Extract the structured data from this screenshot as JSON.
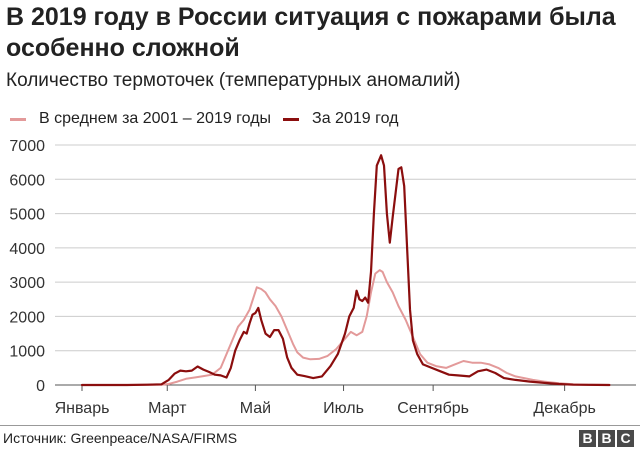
{
  "title": "В 2019 году в России ситуация с пожарами была особенно сложной",
  "subtitle": "Количество термоточек (температурных аномалий)",
  "legend": [
    {
      "label": "В среднем за 2001 – 2019 годы",
      "color": "#e39a9a"
    },
    {
      "label": "За 2019 год",
      "color": "#8b0e0e"
    }
  ],
  "source": "Источник: Greenpeace/NASA/FIRMS",
  "logo": [
    "B",
    "B",
    "C"
  ],
  "chart_data": {
    "type": "line",
    "title": "В 2019 году в России ситуация с пожарами была особенно сложной",
    "subtitle": "Количество термоточек (температурных аномалий)",
    "xlabel": "",
    "ylabel": "",
    "ylim": [
      0,
      7000
    ],
    "yticks": [
      0,
      1000,
      2000,
      3000,
      4000,
      5000,
      6000,
      7000
    ],
    "xticks": [
      {
        "label": "Январь",
        "day": 0
      },
      {
        "label": "Март",
        "day": 59
      },
      {
        "label": "Май",
        "day": 120
      },
      {
        "label": "Июль",
        "day": 181
      },
      {
        "label": "Сентябрь",
        "day": 243
      },
      {
        "label": "Декабрь",
        "day": 334
      }
    ],
    "grid": true,
    "legend_position": "top",
    "x_unit": "day of year",
    "series": [
      {
        "name": "В среднем за 2001 – 2019 годы",
        "color": "#e39a9a",
        "points": [
          [
            0,
            0
          ],
          [
            30,
            0
          ],
          [
            55,
            10
          ],
          [
            60,
            30
          ],
          [
            66,
            100
          ],
          [
            72,
            180
          ],
          [
            78,
            220
          ],
          [
            84,
            260
          ],
          [
            90,
            300
          ],
          [
            96,
            500
          ],
          [
            100,
            900
          ],
          [
            104,
            1300
          ],
          [
            108,
            1700
          ],
          [
            112,
            1900
          ],
          [
            116,
            2200
          ],
          [
            119,
            2600
          ],
          [
            121,
            2850
          ],
          [
            124,
            2800
          ],
          [
            127,
            2700
          ],
          [
            130,
            2500
          ],
          [
            134,
            2300
          ],
          [
            138,
            2000
          ],
          [
            142,
            1600
          ],
          [
            146,
            1200
          ],
          [
            149,
            950
          ],
          [
            153,
            800
          ],
          [
            158,
            750
          ],
          [
            164,
            760
          ],
          [
            170,
            850
          ],
          [
            176,
            1050
          ],
          [
            182,
            1350
          ],
          [
            186,
            1550
          ],
          [
            190,
            1450
          ],
          [
            194,
            1550
          ],
          [
            197,
            2000
          ],
          [
            200,
            2700
          ],
          [
            203,
            3250
          ],
          [
            206,
            3350
          ],
          [
            208,
            3300
          ],
          [
            211,
            3000
          ],
          [
            215,
            2700
          ],
          [
            219,
            2300
          ],
          [
            224,
            1900
          ],
          [
            229,
            1400
          ],
          [
            234,
            900
          ],
          [
            239,
            650
          ],
          [
            245,
            550
          ],
          [
            252,
            500
          ],
          [
            258,
            600
          ],
          [
            264,
            700
          ],
          [
            270,
            650
          ],
          [
            276,
            650
          ],
          [
            282,
            600
          ],
          [
            288,
            500
          ],
          [
            294,
            350
          ],
          [
            300,
            250
          ],
          [
            306,
            200
          ],
          [
            312,
            150
          ],
          [
            320,
            100
          ],
          [
            330,
            50
          ],
          [
            340,
            20
          ],
          [
            350,
            5
          ],
          [
            365,
            0
          ]
        ]
      },
      {
        "name": "За 2019 год",
        "color": "#8b0e0e",
        "points": [
          [
            0,
            0
          ],
          [
            30,
            0
          ],
          [
            45,
            10
          ],
          [
            55,
            20
          ],
          [
            60,
            150
          ],
          [
            64,
            330
          ],
          [
            68,
            420
          ],
          [
            72,
            400
          ],
          [
            76,
            420
          ],
          [
            80,
            540
          ],
          [
            84,
            450
          ],
          [
            88,
            380
          ],
          [
            92,
            300
          ],
          [
            96,
            280
          ],
          [
            100,
            220
          ],
          [
            103,
            500
          ],
          [
            106,
            1000
          ],
          [
            109,
            1300
          ],
          [
            112,
            1550
          ],
          [
            114,
            1500
          ],
          [
            116,
            1800
          ],
          [
            118,
            2050
          ],
          [
            120,
            2100
          ],
          [
            122,
            2250
          ],
          [
            124,
            1900
          ],
          [
            127,
            1500
          ],
          [
            130,
            1400
          ],
          [
            133,
            1600
          ],
          [
            136,
            1600
          ],
          [
            139,
            1350
          ],
          [
            142,
            800
          ],
          [
            145,
            500
          ],
          [
            149,
            300
          ],
          [
            154,
            260
          ],
          [
            160,
            200
          ],
          [
            166,
            250
          ],
          [
            172,
            550
          ],
          [
            177,
            900
          ],
          [
            182,
            1500
          ],
          [
            185,
            2000
          ],
          [
            188,
            2250
          ],
          [
            190,
            2750
          ],
          [
            192,
            2500
          ],
          [
            194,
            2450
          ],
          [
            196,
            2550
          ],
          [
            198,
            2400
          ],
          [
            200,
            3300
          ],
          [
            202,
            5000
          ],
          [
            204,
            6400
          ],
          [
            206,
            6600
          ],
          [
            207,
            6700
          ],
          [
            209,
            6400
          ],
          [
            211,
            5000
          ],
          [
            213,
            4150
          ],
          [
            215,
            4900
          ],
          [
            217,
            5600
          ],
          [
            219,
            6300
          ],
          [
            221,
            6350
          ],
          [
            223,
            5800
          ],
          [
            225,
            4000
          ],
          [
            227,
            2200
          ],
          [
            229,
            1300
          ],
          [
            232,
            900
          ],
          [
            236,
            600
          ],
          [
            242,
            500
          ],
          [
            248,
            400
          ],
          [
            254,
            300
          ],
          [
            260,
            280
          ],
          [
            268,
            250
          ],
          [
            274,
            400
          ],
          [
            280,
            450
          ],
          [
            286,
            350
          ],
          [
            292,
            200
          ],
          [
            300,
            150
          ],
          [
            310,
            100
          ],
          [
            320,
            60
          ],
          [
            330,
            30
          ],
          [
            340,
            10
          ],
          [
            365,
            0
          ]
        ]
      }
    ]
  }
}
